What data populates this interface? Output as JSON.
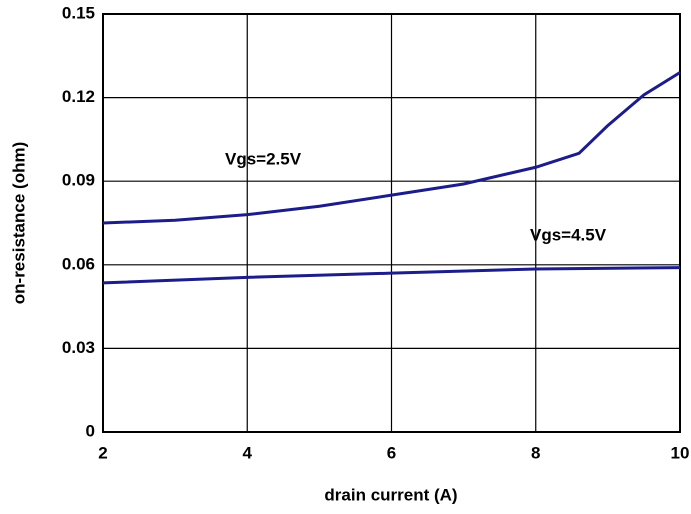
{
  "chart_data": {
    "type": "line",
    "x_label": "drain current (A)",
    "y_label": "on-resistance (ohm)",
    "xlim": [
      2,
      10
    ],
    "xticks": [
      2,
      4,
      6,
      8,
      10
    ],
    "ylim": [
      0,
      0.15
    ],
    "yticks": [
      0,
      0.03,
      0.06,
      0.09,
      0.12,
      0.15
    ],
    "grid": true,
    "series": [
      {
        "name": "Vgs=2.5V",
        "color": "#1c1c8a",
        "x": [
          2,
          3,
          4,
          5,
          6,
          7,
          8,
          8.6,
          9,
          9.5,
          10
        ],
        "values": [
          0.075,
          0.076,
          0.078,
          0.081,
          0.085,
          0.089,
          0.095,
          0.1,
          0.11,
          0.121,
          0.129
        ]
      },
      {
        "name": "Vgs=4.5V",
        "color": "#1c1c8a",
        "x": [
          2,
          4,
          6,
          8,
          10
        ],
        "values": [
          0.0535,
          0.0555,
          0.057,
          0.0585,
          0.059
        ]
      }
    ]
  }
}
